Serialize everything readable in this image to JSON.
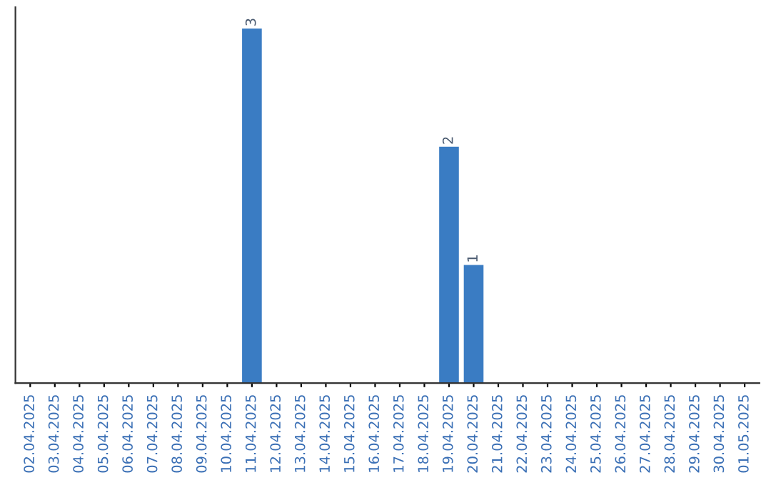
{
  "chart_data": {
    "type": "bar",
    "categories": [
      "02.04.2025",
      "03.04.2025",
      "04.04.2025",
      "05.04.2025",
      "06.04.2025",
      "07.04.2025",
      "08.04.2025",
      "09.04.2025",
      "10.04.2025",
      "11.04.2025",
      "12.04.2025",
      "13.04.2025",
      "14.04.2025",
      "15.04.2025",
      "16.04.2025",
      "17.04.2025",
      "18.04.2025",
      "19.04.2025",
      "20.04.2025",
      "21.04.2025",
      "22.04.2025",
      "23.04.2025",
      "24.04.2025",
      "25.04.2025",
      "26.04.2025",
      "27.04.2025",
      "28.04.2025",
      "29.04.2025",
      "30.04.2025",
      "01.05.2025"
    ],
    "values": [
      0,
      0,
      0,
      0,
      0,
      0,
      0,
      0,
      0,
      3,
      0,
      0,
      0,
      0,
      0,
      0,
      0,
      2,
      1,
      0,
      0,
      0,
      0,
      0,
      0,
      0,
      0,
      0,
      0,
      0
    ],
    "value_labels": [
      null,
      null,
      null,
      null,
      null,
      null,
      null,
      null,
      null,
      "3",
      null,
      null,
      null,
      null,
      null,
      null,
      null,
      "2",
      "1",
      null,
      null,
      null,
      null,
      null,
      null,
      null,
      null,
      null,
      null,
      null
    ],
    "color": "#3a7cc3",
    "tick_labels": "x"
  }
}
